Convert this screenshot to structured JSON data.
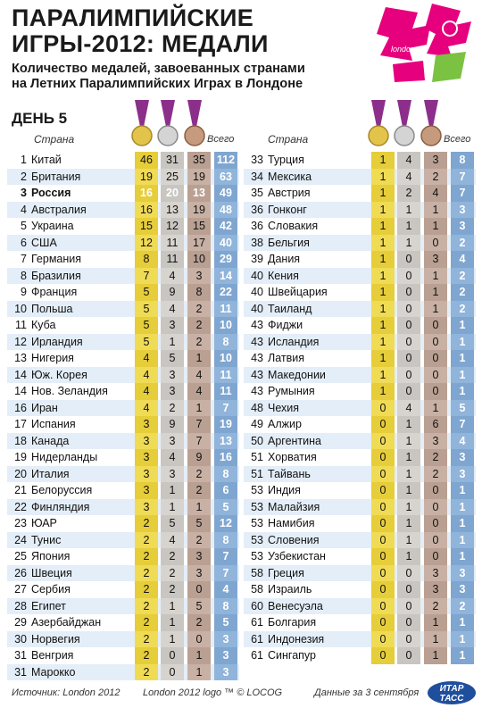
{
  "header": {
    "title_line1": "ПАРАЛИМПИЙСКИЕ",
    "title_line2": "ИГРЫ-2012: МЕДАЛИ",
    "subtitle_line1": "Количество медалей, завоеванных странами",
    "subtitle_line2": "на Летних Паралимпийских Играх в Лондоне",
    "day": "ДЕНЬ 5",
    "logo_text": "london"
  },
  "columns": {
    "country": "Страна",
    "total": "Всего"
  },
  "colors": {
    "gold": "#e6cd3a",
    "silver": "#c9c6c1",
    "bronze": "#b9a092",
    "total": "#7fa6d0",
    "stripe": "#e4eef8",
    "logo": "#e6007e"
  },
  "chart_data": {
    "type": "table",
    "columns": [
      "Страна",
      "gold",
      "silver",
      "bronze",
      "Всего"
    ],
    "rows": [
      {
        "rank": "1",
        "country": "Китай",
        "gold": 46,
        "silver": 31,
        "bronze": 35,
        "total": 112
      },
      {
        "rank": "2",
        "country": "Британия",
        "gold": 19,
        "silver": 25,
        "bronze": 19,
        "total": 63
      },
      {
        "rank": "3",
        "country": "Россия",
        "gold": 16,
        "silver": 20,
        "bronze": 13,
        "total": 49,
        "highlight": true
      },
      {
        "rank": "4",
        "country": "Австралия",
        "gold": 16,
        "silver": 13,
        "bronze": 19,
        "total": 48
      },
      {
        "rank": "5",
        "country": "Украина",
        "gold": 15,
        "silver": 12,
        "bronze": 15,
        "total": 42
      },
      {
        "rank": "6",
        "country": "США",
        "gold": 12,
        "silver": 11,
        "bronze": 17,
        "total": 40
      },
      {
        "rank": "7",
        "country": "Германия",
        "gold": 8,
        "silver": 11,
        "bronze": 10,
        "total": 29
      },
      {
        "rank": "8",
        "country": "Бразилия",
        "gold": 7,
        "silver": 4,
        "bronze": 3,
        "total": 14
      },
      {
        "rank": "9",
        "country": "Франция",
        "gold": 5,
        "silver": 9,
        "bronze": 8,
        "total": 22
      },
      {
        "rank": "10",
        "country": "Польша",
        "gold": 5,
        "silver": 4,
        "bronze": 2,
        "total": 11
      },
      {
        "rank": "11",
        "country": "Куба",
        "gold": 5,
        "silver": 3,
        "bronze": 2,
        "total": 10
      },
      {
        "rank": "12",
        "country": "Ирландия",
        "gold": 5,
        "silver": 1,
        "bronze": 2,
        "total": 8
      },
      {
        "rank": "13",
        "country": "Нигерия",
        "gold": 4,
        "silver": 5,
        "bronze": 1,
        "total": 10
      },
      {
        "rank": "14",
        "country": "Юж. Корея",
        "gold": 4,
        "silver": 3,
        "bronze": 4,
        "total": 11
      },
      {
        "rank": "14",
        "country": "Нов. Зеландия",
        "gold": 4,
        "silver": 3,
        "bronze": 4,
        "total": 11
      },
      {
        "rank": "16",
        "country": "Иран",
        "gold": 4,
        "silver": 2,
        "bronze": 1,
        "total": 7
      },
      {
        "rank": "17",
        "country": "Испания",
        "gold": 3,
        "silver": 9,
        "bronze": 7,
        "total": 19
      },
      {
        "rank": "18",
        "country": "Канада",
        "gold": 3,
        "silver": 3,
        "bronze": 7,
        "total": 13
      },
      {
        "rank": "19",
        "country": "Нидерланды",
        "gold": 3,
        "silver": 4,
        "bronze": 9,
        "total": 16
      },
      {
        "rank": "20",
        "country": "Италия",
        "gold": 3,
        "silver": 3,
        "bronze": 2,
        "total": 8
      },
      {
        "rank": "21",
        "country": "Белоруссия",
        "gold": 3,
        "silver": 1,
        "bronze": 2,
        "total": 6
      },
      {
        "rank": "22",
        "country": "Финляндия",
        "gold": 3,
        "silver": 1,
        "bronze": 1,
        "total": 5
      },
      {
        "rank": "23",
        "country": "ЮАР",
        "gold": 2,
        "silver": 5,
        "bronze": 5,
        "total": 12
      },
      {
        "rank": "24",
        "country": "Тунис",
        "gold": 2,
        "silver": 4,
        "bronze": 2,
        "total": 8
      },
      {
        "rank": "25",
        "country": "Япония",
        "gold": 2,
        "silver": 2,
        "bronze": 3,
        "total": 7
      },
      {
        "rank": "26",
        "country": "Швеция",
        "gold": 2,
        "silver": 2,
        "bronze": 3,
        "total": 7
      },
      {
        "rank": "27",
        "country": "Сербия",
        "gold": 2,
        "silver": 2,
        "bronze": 0,
        "total": 4
      },
      {
        "rank": "28",
        "country": "Египет",
        "gold": 2,
        "silver": 1,
        "bronze": 5,
        "total": 8
      },
      {
        "rank": "29",
        "country": "Азербайджан",
        "gold": 2,
        "silver": 1,
        "bronze": 2,
        "total": 5
      },
      {
        "rank": "30",
        "country": "Норвегия",
        "gold": 2,
        "silver": 1,
        "bronze": 0,
        "total": 3
      },
      {
        "rank": "31",
        "country": "Венгрия",
        "gold": 2,
        "silver": 0,
        "bronze": 1,
        "total": 3
      },
      {
        "rank": "31",
        "country": "Марокко",
        "gold": 2,
        "silver": 0,
        "bronze": 1,
        "total": 3
      },
      {
        "rank": "33",
        "country": "Турция",
        "gold": 1,
        "silver": 4,
        "bronze": 3,
        "total": 8
      },
      {
        "rank": "34",
        "country": "Мексика",
        "gold": 1,
        "silver": 4,
        "bronze": 2,
        "total": 7
      },
      {
        "rank": "35",
        "country": "Австрия",
        "gold": 1,
        "silver": 2,
        "bronze": 4,
        "total": 7
      },
      {
        "rank": "36",
        "country": "Гонконг",
        "gold": 1,
        "silver": 1,
        "bronze": 1,
        "total": 3
      },
      {
        "rank": "36",
        "country": "Словакия",
        "gold": 1,
        "silver": 1,
        "bronze": 1,
        "total": 3
      },
      {
        "rank": "38",
        "country": "Бельгия",
        "gold": 1,
        "silver": 1,
        "bronze": 0,
        "total": 2
      },
      {
        "rank": "39",
        "country": "Дания",
        "gold": 1,
        "silver": 0,
        "bronze": 3,
        "total": 4
      },
      {
        "rank": "40",
        "country": "Кения",
        "gold": 1,
        "silver": 0,
        "bronze": 1,
        "total": 2
      },
      {
        "rank": "40",
        "country": "Швейцария",
        "gold": 1,
        "silver": 0,
        "bronze": 1,
        "total": 2
      },
      {
        "rank": "40",
        "country": "Таиланд",
        "gold": 1,
        "silver": 0,
        "bronze": 1,
        "total": 2
      },
      {
        "rank": "43",
        "country": "Фиджи",
        "gold": 1,
        "silver": 0,
        "bronze": 0,
        "total": 1
      },
      {
        "rank": "43",
        "country": "Исландия",
        "gold": 1,
        "silver": 0,
        "bronze": 0,
        "total": 1
      },
      {
        "rank": "43",
        "country": "Латвия",
        "gold": 1,
        "silver": 0,
        "bronze": 0,
        "total": 1
      },
      {
        "rank": "43",
        "country": "Македонии",
        "gold": 1,
        "silver": 0,
        "bronze": 0,
        "total": 1
      },
      {
        "rank": "43",
        "country": "Румыния",
        "gold": 1,
        "silver": 0,
        "bronze": 0,
        "total": 1
      },
      {
        "rank": "48",
        "country": "Чехия",
        "gold": 0,
        "silver": 4,
        "bronze": 1,
        "total": 5
      },
      {
        "rank": "49",
        "country": "Алжир",
        "gold": 0,
        "silver": 1,
        "bronze": 6,
        "total": 7
      },
      {
        "rank": "50",
        "country": "Аргентина",
        "gold": 0,
        "silver": 1,
        "bronze": 3,
        "total": 4
      },
      {
        "rank": "51",
        "country": "Хорватия",
        "gold": 0,
        "silver": 1,
        "bronze": 2,
        "total": 3
      },
      {
        "rank": "51",
        "country": "Тайвань",
        "gold": 0,
        "silver": 1,
        "bronze": 2,
        "total": 3
      },
      {
        "rank": "53",
        "country": "Индия",
        "gold": 0,
        "silver": 1,
        "bronze": 0,
        "total": 1
      },
      {
        "rank": "53",
        "country": "Малайзия",
        "gold": 0,
        "silver": 1,
        "bronze": 0,
        "total": 1
      },
      {
        "rank": "53",
        "country": "Намибия",
        "gold": 0,
        "silver": 1,
        "bronze": 0,
        "total": 1
      },
      {
        "rank": "53",
        "country": "Словения",
        "gold": 0,
        "silver": 1,
        "bronze": 0,
        "total": 1
      },
      {
        "rank": "53",
        "country": "Узбекистан",
        "gold": 0,
        "silver": 1,
        "bronze": 0,
        "total": 1
      },
      {
        "rank": "58",
        "country": "Греция",
        "gold": 0,
        "silver": 0,
        "bronze": 3,
        "total": 3
      },
      {
        "rank": "58",
        "country": "Израиль",
        "gold": 0,
        "silver": 0,
        "bronze": 3,
        "total": 3
      },
      {
        "rank": "60",
        "country": "Венесуэла",
        "gold": 0,
        "silver": 0,
        "bronze": 2,
        "total": 2
      },
      {
        "rank": "61",
        "country": "Болгария",
        "gold": 0,
        "silver": 0,
        "bronze": 1,
        "total": 1
      },
      {
        "rank": "61",
        "country": "Индонезия",
        "gold": 0,
        "silver": 0,
        "bronze": 1,
        "total": 1
      },
      {
        "rank": "61",
        "country": "Сингапур",
        "gold": 0,
        "silver": 0,
        "bronze": 1,
        "total": 1
      }
    ]
  },
  "footer": {
    "source": "Источник: London 2012",
    "logo_credit": "London 2012 logo ™ © LOCOG",
    "date_note": "Данные за 3 сентября",
    "agency_line1": "ИТАР",
    "agency_line2": "ТАСС"
  }
}
